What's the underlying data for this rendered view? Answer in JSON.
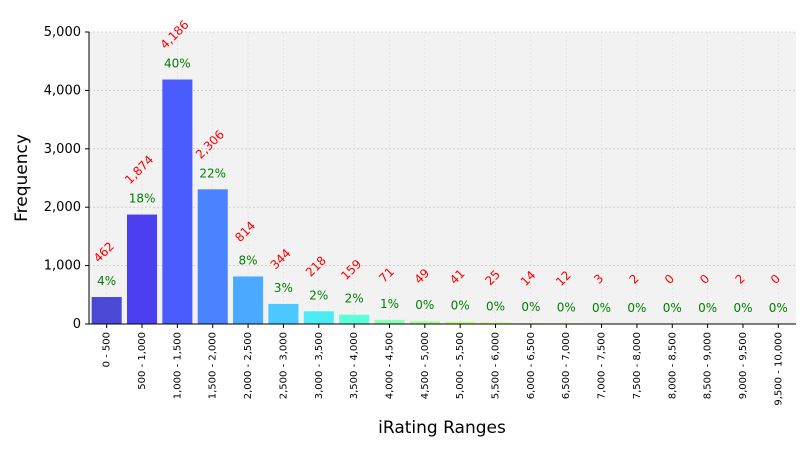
{
  "chart_data": {
    "type": "bar",
    "xlabel": "iRating Ranges",
    "ylabel": "Frequency",
    "ylim": [
      0,
      5000
    ],
    "yticks": [
      0,
      1000,
      2000,
      3000,
      4000,
      5000
    ],
    "ytick_labels": [
      "0",
      "1,000",
      "2,000",
      "3,000",
      "4,000",
      "5,000"
    ],
    "grid": true,
    "categories": [
      "0 - 500",
      "500 - 1,000",
      "1,000 - 1,500",
      "1,500 - 2,000",
      "2,000 - 2,500",
      "2,500 - 3,000",
      "3,000 - 3,500",
      "3,500 - 4,000",
      "4,000 - 4,500",
      "4,500 - 5,000",
      "5,000 - 5,500",
      "5,500 - 6,000",
      "6,000 - 6,500",
      "6,500 - 7,000",
      "7,000 - 7,500",
      "7,500 - 8,000",
      "8,000 - 8,500",
      "8,500 - 9,000",
      "9,000 - 9,500",
      "9,500 - 10,000"
    ],
    "values": [
      462,
      1874,
      4186,
      2306,
      814,
      344,
      218,
      159,
      71,
      49,
      41,
      25,
      14,
      12,
      3,
      2,
      0,
      0,
      2,
      0
    ],
    "count_labels": [
      "462",
      "1,874",
      "4,186",
      "2,306",
      "814",
      "344",
      "218",
      "159",
      "71",
      "49",
      "41",
      "25",
      "14",
      "12",
      "3",
      "2",
      "0",
      "0",
      "2",
      "0"
    ],
    "percent_labels": [
      "4%",
      "18%",
      "40%",
      "22%",
      "8%",
      "3%",
      "2%",
      "2%",
      "1%",
      "0%",
      "0%",
      "0%",
      "0%",
      "0%",
      "0%",
      "0%",
      "0%",
      "0%",
      "0%",
      "0%"
    ],
    "colors": [
      "#4b48d6",
      "#4b40f0",
      "#4b5cff",
      "#4b82ff",
      "#4baaff",
      "#4bc8ff",
      "#4bebf5",
      "#5cffd8",
      "#8cffb4",
      "#a8ffa0",
      "#c4ff8c",
      "#d8ff82",
      "#e8ff80",
      "#f4f870",
      "#fbef6a",
      "#ffe566",
      "#ffd660",
      "#ffc45a",
      "#ffb050",
      "#ff9a48"
    ],
    "colors_note_hidden": ""
  }
}
